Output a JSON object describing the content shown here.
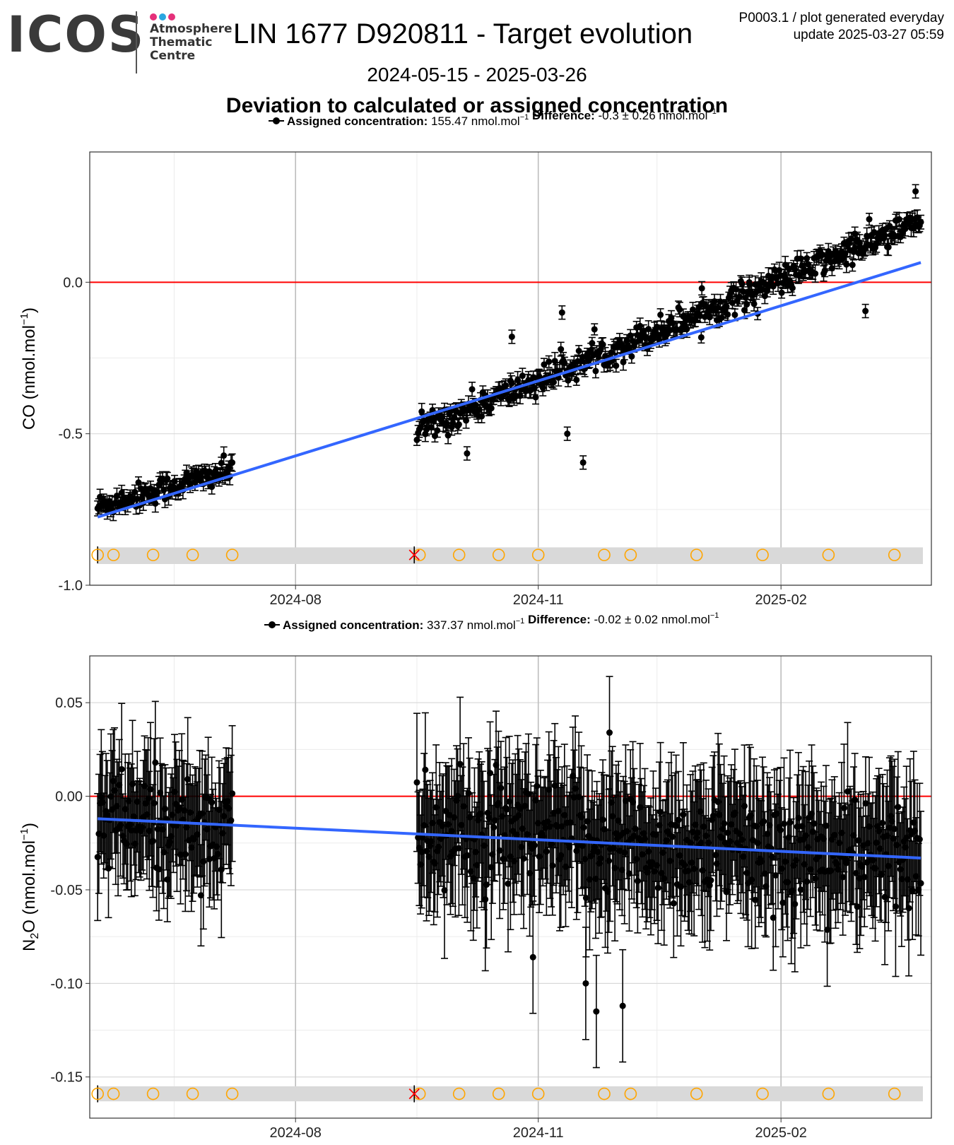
{
  "header": {
    "logo_text": "ICOS",
    "logo_subtitle": [
      "Atmosphere",
      "Thematic",
      "Centre"
    ],
    "logo_dot_colors": [
      "#e5307a",
      "#2aa6e0",
      "#e5307a"
    ],
    "title": "LIN 1677 D920811 - Target evolution",
    "meta_line1": "P0003.1 / plot generated everyday",
    "meta_line2": "update  2025-03-27 05:59",
    "date_range": "2024-05-15 - 2025-03-26",
    "section_title": "Deviation to calculated or assigned concentration"
  },
  "colors": {
    "points": "#000000",
    "trend": "#3366ff",
    "zero_line": "#ff0000",
    "event_circle": "#ffa500",
    "event_cross": "#ff0000",
    "event_band": "#d9d9d9"
  },
  "chart_data": [
    {
      "type": "scatter",
      "name": "co",
      "legend": {
        "assigned_label": "Assigned concentration:",
        "assigned_value": "155.47 nmol.mol",
        "difference_label": "Difference:",
        "difference_value": "-0.3 ± 0.26 nmol.mol",
        "superscript": "−1"
      },
      "ylabel": "CO (nmol.mol",
      "ylabel_sup": "−1",
      "ylabel_end": ")",
      "ylim": [
        -1.0,
        0.43
      ],
      "yticks": [
        {
          "v": 0.0,
          "label": "0.0"
        },
        {
          "v": -0.5,
          "label": "-0.5"
        },
        {
          "v": -1.0,
          "label": "-1.0"
        }
      ],
      "trend": {
        "start": {
          "x": "2024-05-18",
          "y": -0.775
        },
        "end": {
          "x": "2025-03-26",
          "y": 0.065
        }
      },
      "event_band_y": [
        -0.93,
        -0.875
      ],
      "event_y": -0.9,
      "segments": [
        {
          "start": "2024-05-18",
          "end": "2024-07-08",
          "y0": -0.74,
          "y1": -0.62,
          "noise": 0.035,
          "err": 0.022
        },
        {
          "start": "2024-09-16",
          "end": "2025-03-26",
          "y0": -0.49,
          "y1": 0.2,
          "noise": 0.04,
          "err": 0.022
        }
      ],
      "points": [
        {
          "x": "2024-10-05",
          "y": -0.565,
          "e": 0.022
        },
        {
          "x": "2024-10-22",
          "y": -0.18,
          "e": 0.022
        },
        {
          "x": "2024-11-12",
          "y": -0.5,
          "e": 0.022
        },
        {
          "x": "2024-11-18",
          "y": -0.595,
          "e": 0.022
        },
        {
          "x": "2024-11-10",
          "y": -0.1,
          "e": 0.022
        },
        {
          "x": "2025-01-02",
          "y": -0.02,
          "e": 0.022
        },
        {
          "x": "2025-01-20",
          "y": -0.005,
          "e": 0.022
        },
        {
          "x": "2025-03-05",
          "y": -0.095,
          "e": 0.022
        },
        {
          "x": "2025-03-01",
          "y": 0.16,
          "e": 0.022
        },
        {
          "x": "2025-03-24",
          "y": 0.3,
          "e": 0.022
        }
      ]
    },
    {
      "type": "scatter",
      "name": "n2o",
      "legend": {
        "assigned_label": "Assigned concentration:",
        "assigned_value": "337.37 nmol.mol",
        "difference_label": "Difference:",
        "difference_value": "-0.02 ± 0.02 nmol.mol",
        "superscript": "−1"
      },
      "ylabel": "N",
      "ylabel_sub": "2",
      "ylabel_rest": "O (nmol.mol",
      "ylabel_sup": "−1",
      "ylabel_end": ")",
      "ylim": [
        -0.172,
        0.075
      ],
      "yticks": [
        {
          "v": 0.05,
          "label": "0.05"
        },
        {
          "v": 0.0,
          "label": "0.00"
        },
        {
          "v": -0.05,
          "label": "-0.05"
        },
        {
          "v": -0.1,
          "label": "-0.10"
        },
        {
          "v": -0.15,
          "label": "-0.15"
        }
      ],
      "trend": {
        "start": {
          "x": "2024-05-18",
          "y": -0.012
        },
        "end": {
          "x": "2025-03-26",
          "y": -0.033
        }
      },
      "event_band_y": [
        -0.163,
        -0.155
      ],
      "event_y": -0.159,
      "segments": [
        {
          "start": "2024-05-18",
          "end": "2024-07-08",
          "y0": -0.013,
          "y1": -0.016,
          "noise": 0.022,
          "err": 0.028
        },
        {
          "start": "2024-09-16",
          "end": "2025-03-26",
          "y0": -0.02,
          "y1": -0.033,
          "noise": 0.024,
          "err": 0.03
        }
      ],
      "points": [
        {
          "x": "2024-11-23",
          "y": -0.115,
          "e": 0.03
        },
        {
          "x": "2024-12-03",
          "y": -0.112,
          "e": 0.03
        },
        {
          "x": "2024-11-19",
          "y": -0.1,
          "e": 0.03
        },
        {
          "x": "2024-10-30",
          "y": -0.086,
          "e": 0.03
        },
        {
          "x": "2024-11-28",
          "y": 0.034,
          "e": 0.03
        }
      ]
    }
  ],
  "x_axis": {
    "start": "2024-05-15",
    "end": "2025-03-30",
    "major_ticks": [
      {
        "x": "2024-08-01",
        "label": "2024-08"
      },
      {
        "x": "2024-11-01",
        "label": "2024-11"
      },
      {
        "x": "2025-02-01",
        "label": "2025-02"
      }
    ],
    "minor_ticks": [
      "2024-06-16",
      "2024-09-16",
      "2024-12-16"
    ]
  },
  "events": {
    "start_tick": "2024-05-18",
    "cross": "2024-09-15",
    "circles": [
      "2024-05-18",
      "2024-05-24",
      "2024-06-08",
      "2024-06-23",
      "2024-07-08",
      "2024-09-17",
      "2024-10-02",
      "2024-10-17",
      "2024-11-01",
      "2024-11-26",
      "2024-12-06",
      "2024-12-31",
      "2025-01-25",
      "2025-02-19",
      "2025-03-16"
    ]
  }
}
